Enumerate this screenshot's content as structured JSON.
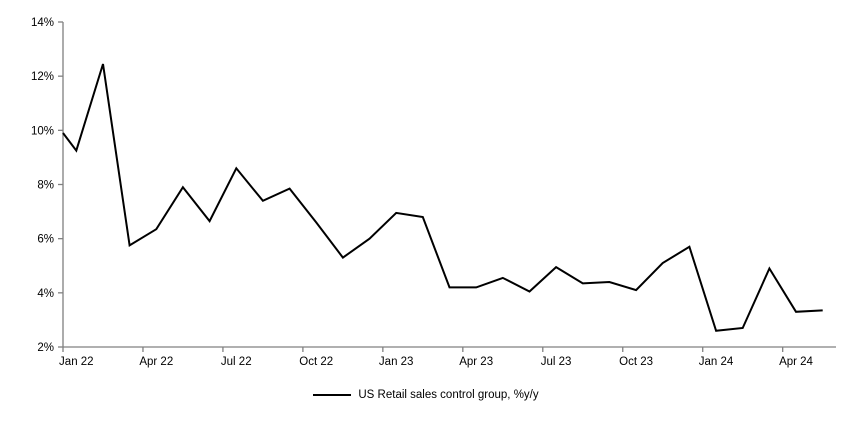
{
  "chart_data": {
    "type": "line",
    "title": "",
    "grid": false,
    "axis_color": "#808080",
    "line_color": "#000000",
    "legend": {
      "label": "US Retail sales control group, %y/y",
      "position": "bottom-center",
      "swatch": "line"
    },
    "y_axis": {
      "min": 2,
      "max": 14,
      "tick_step": 2,
      "tick_labels": [
        "2%",
        "4%",
        "6%",
        "8%",
        "10%",
        "12%",
        "14%"
      ],
      "format": "percent"
    },
    "x_axis": {
      "tick_labels": [
        "Jan 22",
        "Apr 22",
        "Jul 22",
        "Oct 22",
        "Jan 23",
        "Apr 23",
        "Jul 23",
        "Oct 23",
        "Jan 24",
        "Apr 24"
      ],
      "label_every_n_months": 3
    },
    "series": [
      {
        "name": "US Retail sales control group, %y/y",
        "color": "#000000",
        "edge_start_value": 9.9,
        "categories": [
          "Jan 22",
          "Feb 22",
          "Mar 22",
          "Apr 22",
          "May 22",
          "Jun 22",
          "Jul 22",
          "Aug 22",
          "Sep 22",
          "Oct 22",
          "Nov 22",
          "Dec 22",
          "Jan 23",
          "Feb 23",
          "Mar 23",
          "Apr 23",
          "May 23",
          "Jun 23",
          "Jul 23",
          "Aug 23",
          "Sep 23",
          "Oct 23",
          "Nov 23",
          "Dec 23",
          "Jan 24",
          "Feb 24",
          "Mar 24",
          "Apr 24",
          "May 24"
        ],
        "values": [
          9.25,
          12.45,
          5.75,
          6.35,
          7.9,
          6.65,
          8.6,
          7.4,
          7.85,
          6.6,
          5.3,
          6.0,
          6.95,
          6.8,
          4.2,
          4.2,
          4.55,
          4.05,
          4.95,
          4.35,
          4.4,
          4.1,
          5.1,
          5.7,
          2.6,
          2.7,
          4.9,
          3.3,
          3.35
        ]
      }
    ]
  }
}
